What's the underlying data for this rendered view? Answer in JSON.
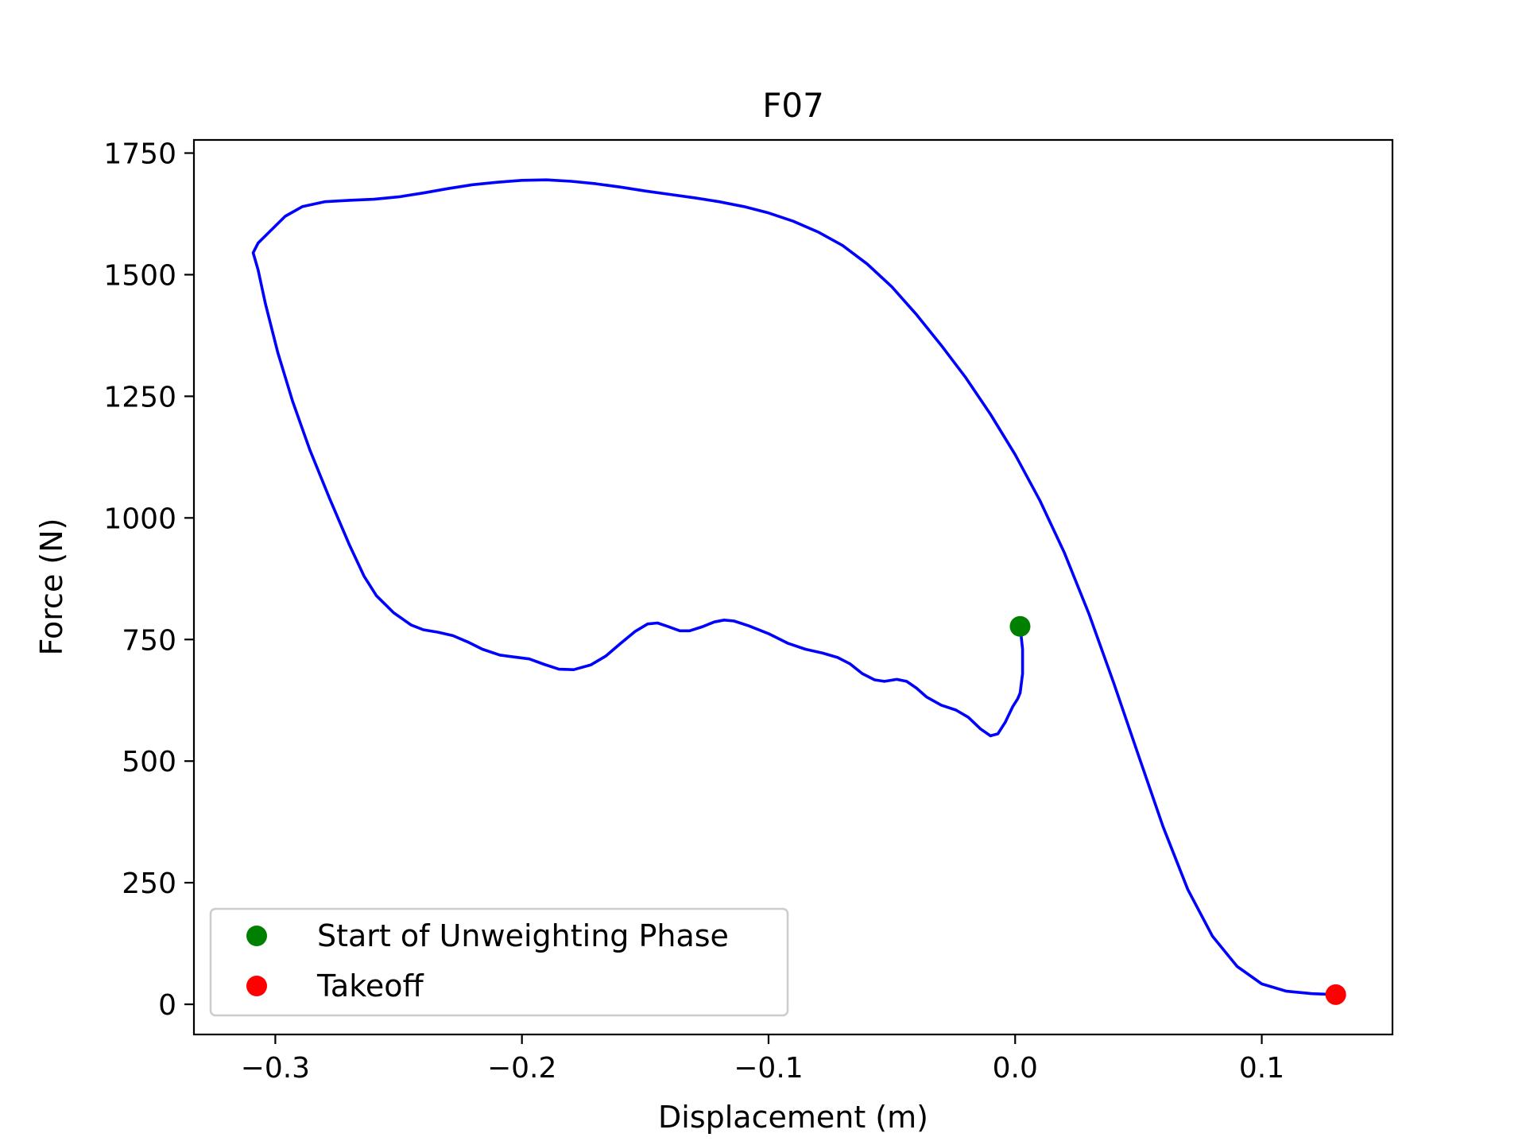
{
  "chart_data": {
    "type": "line",
    "title": "F07",
    "xlabel": "Displacement (m)",
    "ylabel": "Force (N)",
    "xlim": [
      -0.333,
      0.153
    ],
    "ylim": [
      -62,
      1777
    ],
    "xticks": [
      -0.3,
      -0.2,
      -0.1,
      0.0,
      0.1
    ],
    "xtick_labels": [
      "−0.3",
      "−0.2",
      "−0.1",
      "0.0",
      "0.1"
    ],
    "yticks": [
      0,
      250,
      500,
      750,
      1000,
      1250,
      1500,
      1750
    ],
    "ytick_labels": [
      "0",
      "250",
      "500",
      "750",
      "1000",
      "1250",
      "1500",
      "1750"
    ],
    "grid": false,
    "legend_position": "lower-left",
    "series": [
      {
        "color": "#0000ff",
        "points": [
          [
            0.002,
            777
          ],
          [
            0.003,
            730
          ],
          [
            0.003,
            680
          ],
          [
            0.002,
            640
          ],
          [
            0.001,
            628
          ],
          [
            -0.001,
            612
          ],
          [
            -0.004,
            580
          ],
          [
            -0.007,
            556
          ],
          [
            -0.01,
            552
          ],
          [
            -0.014,
            566
          ],
          [
            -0.019,
            590
          ],
          [
            -0.024,
            605
          ],
          [
            -0.03,
            615
          ],
          [
            -0.036,
            632
          ],
          [
            -0.04,
            650
          ],
          [
            -0.044,
            664
          ],
          [
            -0.048,
            668
          ],
          [
            -0.053,
            664
          ],
          [
            -0.057,
            667
          ],
          [
            -0.062,
            680
          ],
          [
            -0.067,
            700
          ],
          [
            -0.072,
            713
          ],
          [
            -0.078,
            722
          ],
          [
            -0.085,
            730
          ],
          [
            -0.092,
            742
          ],
          [
            -0.1,
            762
          ],
          [
            -0.108,
            778
          ],
          [
            -0.114,
            788
          ],
          [
            -0.118,
            790
          ],
          [
            -0.122,
            786
          ],
          [
            -0.127,
            776
          ],
          [
            -0.132,
            768
          ],
          [
            -0.136,
            768
          ],
          [
            -0.141,
            777
          ],
          [
            -0.145,
            784
          ],
          [
            -0.149,
            782
          ],
          [
            -0.154,
            767
          ],
          [
            -0.16,
            742
          ],
          [
            -0.166,
            716
          ],
          [
            -0.172,
            698
          ],
          [
            -0.179,
            688
          ],
          [
            -0.185,
            689
          ],
          [
            -0.191,
            699
          ],
          [
            -0.197,
            710
          ],
          [
            -0.203,
            714
          ],
          [
            -0.209,
            718
          ],
          [
            -0.216,
            730
          ],
          [
            -0.222,
            745
          ],
          [
            -0.228,
            758
          ],
          [
            -0.234,
            765
          ],
          [
            -0.24,
            770
          ],
          [
            -0.245,
            780
          ],
          [
            -0.252,
            805
          ],
          [
            -0.259,
            840
          ],
          [
            -0.264,
            880
          ],
          [
            -0.27,
            945
          ],
          [
            -0.278,
            1040
          ],
          [
            -0.286,
            1140
          ],
          [
            -0.293,
            1240
          ],
          [
            -0.299,
            1340
          ],
          [
            -0.304,
            1440
          ],
          [
            -0.307,
            1510
          ],
          [
            -0.309,
            1545
          ],
          [
            -0.307,
            1565
          ],
          [
            -0.302,
            1590
          ],
          [
            -0.296,
            1620
          ],
          [
            -0.289,
            1640
          ],
          [
            -0.28,
            1650
          ],
          [
            -0.27,
            1653
          ],
          [
            -0.26,
            1655
          ],
          [
            -0.25,
            1660
          ],
          [
            -0.24,
            1668
          ],
          [
            -0.23,
            1677
          ],
          [
            -0.22,
            1685
          ],
          [
            -0.21,
            1690
          ],
          [
            -0.2,
            1694
          ],
          [
            -0.19,
            1695
          ],
          [
            -0.18,
            1692
          ],
          [
            -0.17,
            1687
          ],
          [
            -0.16,
            1680
          ],
          [
            -0.15,
            1672
          ],
          [
            -0.14,
            1665
          ],
          [
            -0.13,
            1658
          ],
          [
            -0.12,
            1650
          ],
          [
            -0.11,
            1640
          ],
          [
            -0.1,
            1627
          ],
          [
            -0.09,
            1610
          ],
          [
            -0.08,
            1588
          ],
          [
            -0.07,
            1560
          ],
          [
            -0.06,
            1522
          ],
          [
            -0.05,
            1475
          ],
          [
            -0.04,
            1418
          ],
          [
            -0.03,
            1355
          ],
          [
            -0.02,
            1288
          ],
          [
            -0.01,
            1213
          ],
          [
            0.0,
            1130
          ],
          [
            0.01,
            1036
          ],
          [
            0.02,
            928
          ],
          [
            0.03,
            802
          ],
          [
            0.04,
            660
          ],
          [
            0.05,
            512
          ],
          [
            0.06,
            365
          ],
          [
            0.07,
            236
          ],
          [
            0.08,
            140
          ],
          [
            0.09,
            78
          ],
          [
            0.1,
            42
          ],
          [
            0.11,
            27
          ],
          [
            0.12,
            22
          ],
          [
            0.13,
            20
          ]
        ]
      }
    ],
    "markers": [
      {
        "label": "Start of Unweighting Phase",
        "x": 0.002,
        "y": 777,
        "color": "#008000"
      },
      {
        "label": "Takeoff",
        "x": 0.13,
        "y": 20,
        "color": "#ff0000"
      }
    ]
  }
}
